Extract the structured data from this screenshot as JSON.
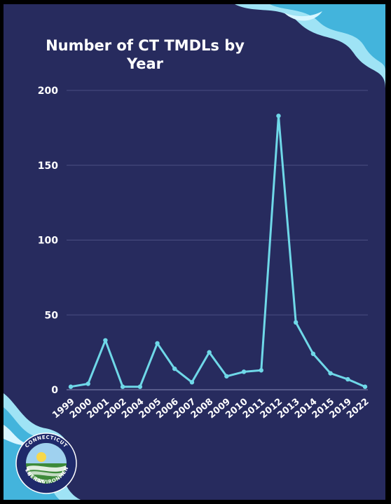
{
  "chart_data": {
    "type": "line",
    "title": "Number of CT TMDLs by Year",
    "categories": [
      "1999",
      "2000",
      "2001",
      "2002",
      "2004",
      "2005",
      "2006",
      "2007",
      "2008",
      "2009",
      "2010",
      "2011",
      "2012",
      "2013",
      "2014",
      "2015",
      "2019",
      "2022"
    ],
    "values": [
      2,
      4,
      33,
      2,
      2,
      31,
      14,
      5,
      25,
      9,
      12,
      13,
      183,
      45,
      24,
      11,
      7,
      2
    ],
    "ylim": [
      0,
      200
    ],
    "yticks": [
      0,
      50,
      100,
      150,
      200
    ],
    "grid": true,
    "xlabel": "",
    "ylabel": ""
  },
  "colors": {
    "background": "#272b5e",
    "frame": "#000000",
    "line": "#6fd8e8",
    "grid": "#4a4e82",
    "wave_light": "#9fe3f5",
    "wave_dark": "#43b4dc"
  },
  "logo": {
    "top_text": "CONNECTICUT",
    "left_text": "ENERGY",
    "bottom_text": "ENVIRONMENT"
  }
}
